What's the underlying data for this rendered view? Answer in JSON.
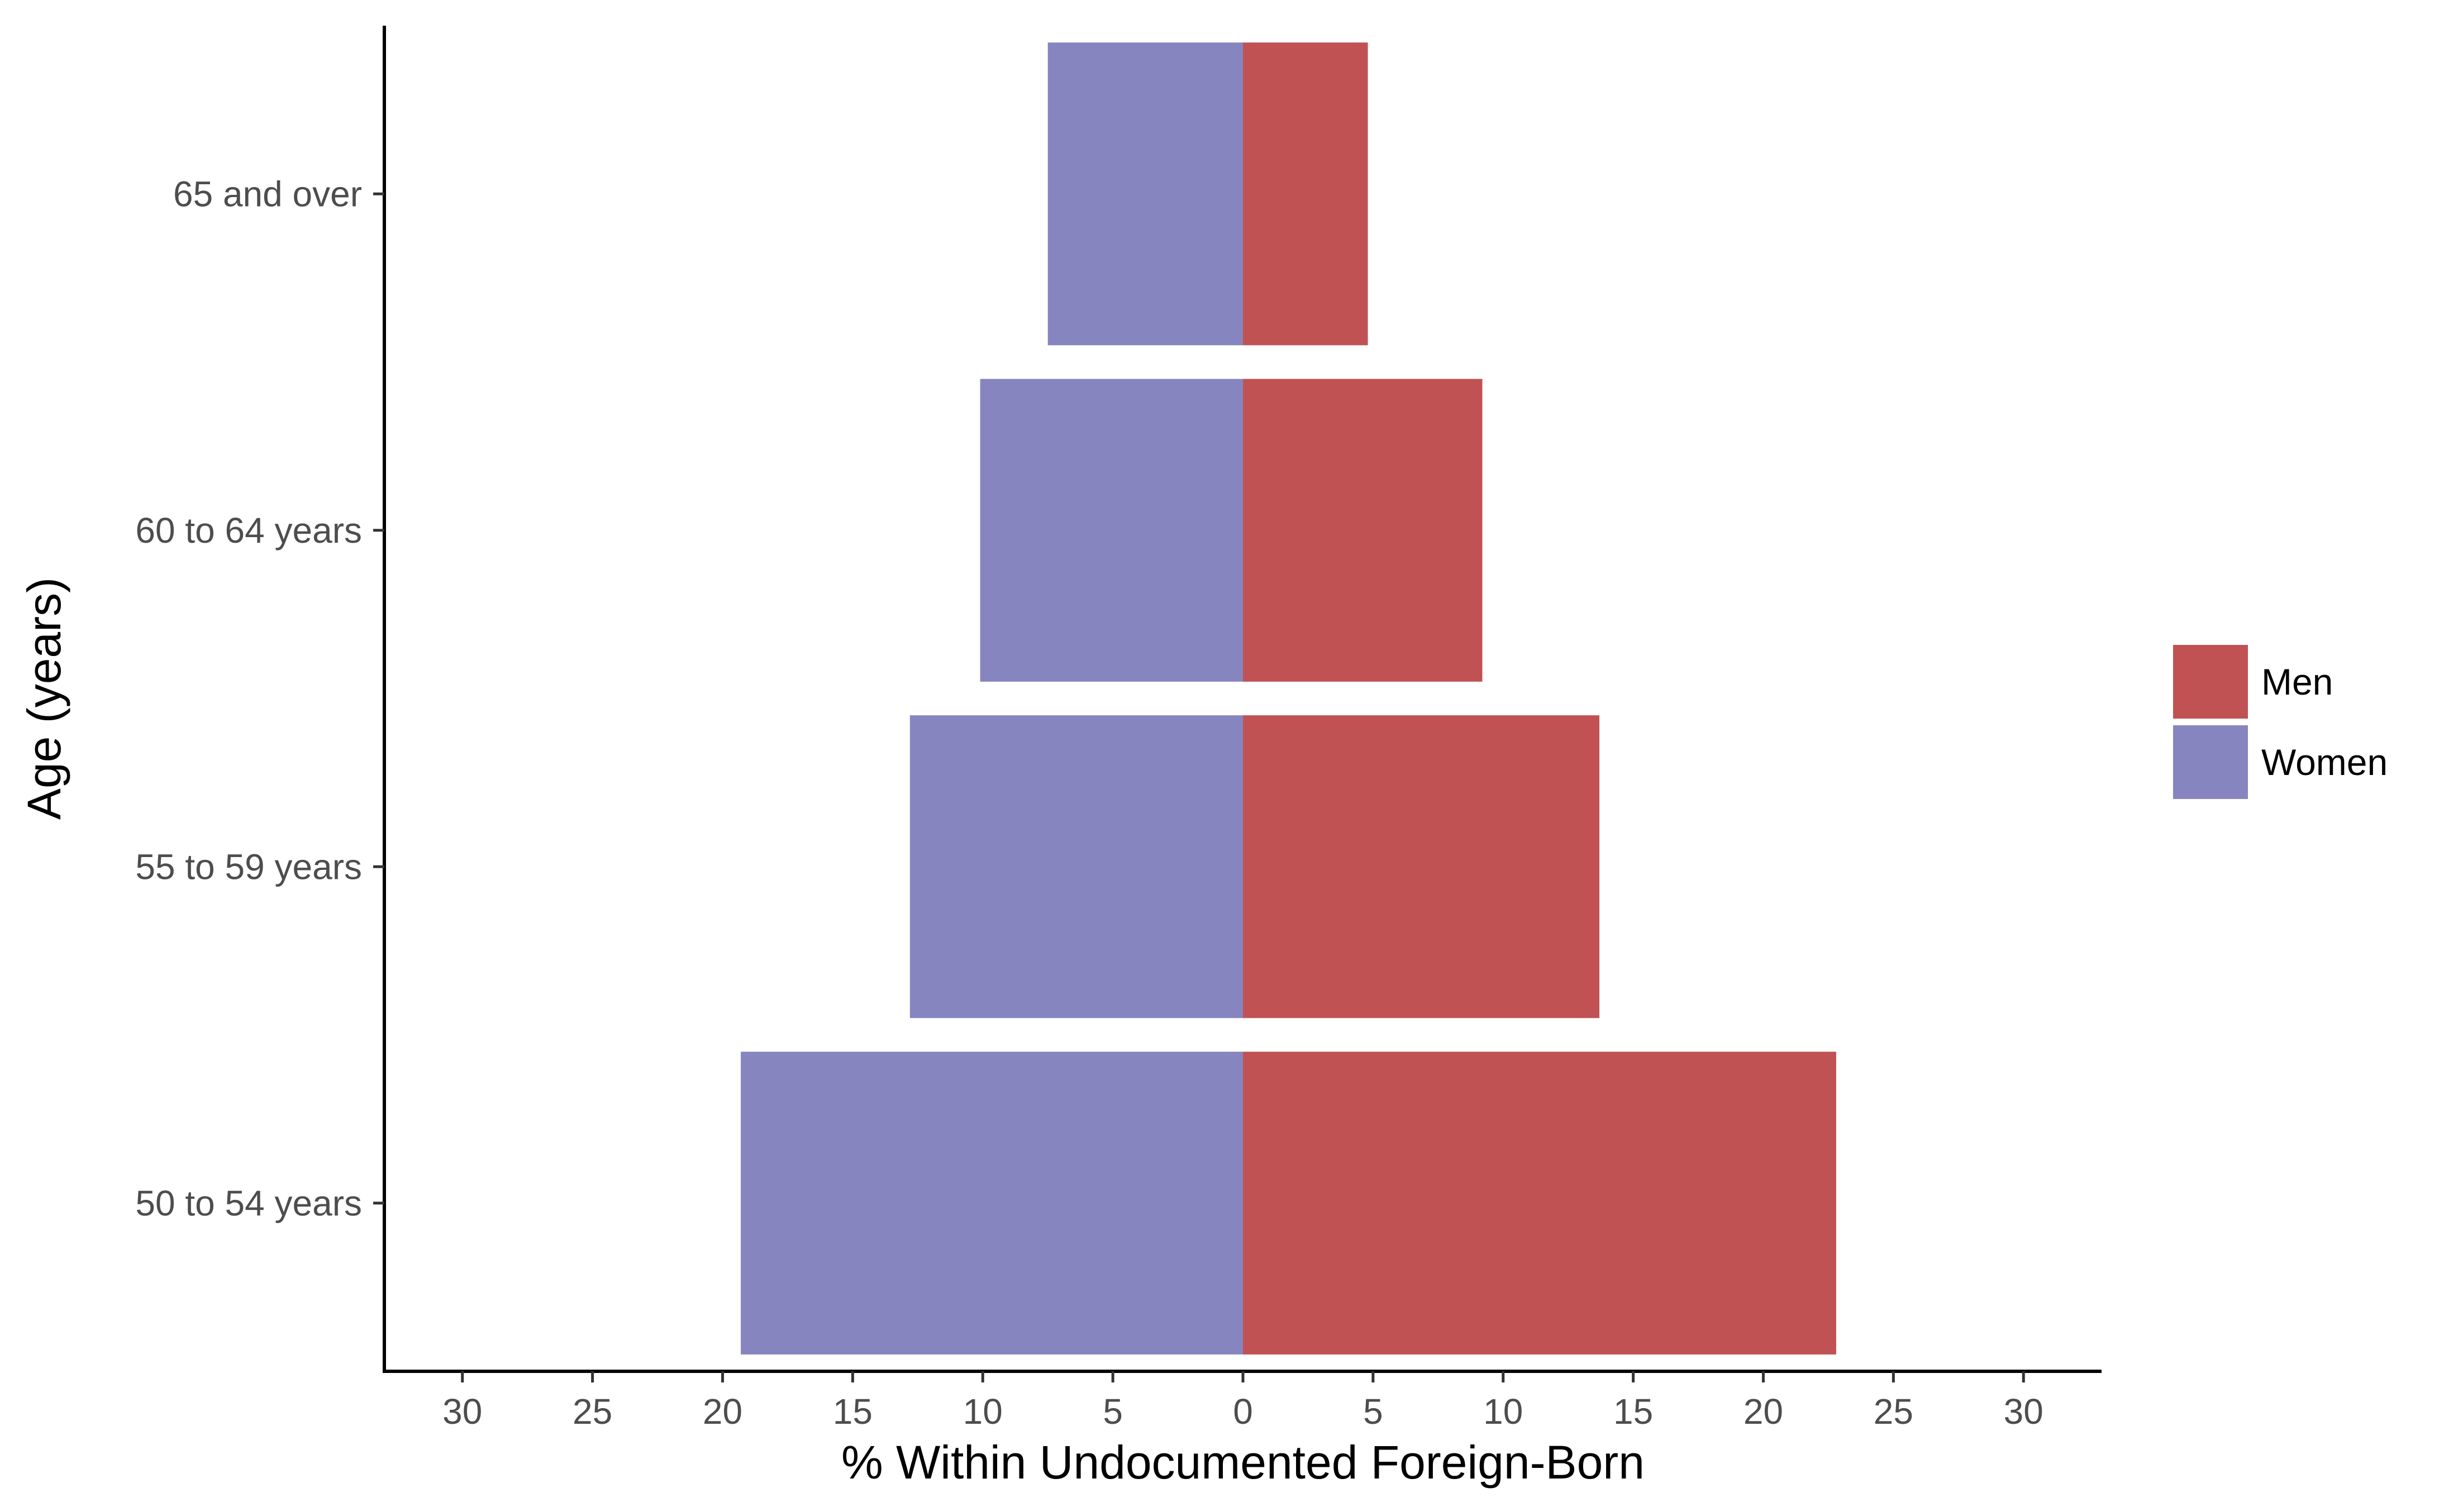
{
  "chart_data": {
    "type": "bar",
    "orientation": "horizontal",
    "layout": "population-pyramid (diverging)",
    "categories": [
      "50 to 54 years",
      "55 to 59 years",
      "60 to 64 years",
      "65 and over"
    ],
    "series": [
      {
        "name": "Men",
        "color": "#c05254",
        "side": "right",
        "values": [
          22.8,
          13.7,
          9.2,
          4.8
        ]
      },
      {
        "name": "Women",
        "color": "#8785c0",
        "side": "left",
        "values": [
          19.3,
          12.8,
          10.1,
          7.5
        ]
      }
    ],
    "xlabel": "% Within Undocumented Foreign-Born",
    "ylabel": "Age (years)",
    "xlim": [
      -33,
      33
    ],
    "xticks": [
      -30,
      -25,
      -20,
      -15,
      -10,
      -5,
      0,
      5,
      10,
      15,
      20,
      25,
      30
    ],
    "xtick_labels": [
      "30",
      "25",
      "20",
      "15",
      "10",
      "5",
      "0",
      "5",
      "10",
      "15",
      "20",
      "25",
      "30"
    ],
    "grid": false,
    "legend": {
      "position": "right",
      "entries": [
        "Men",
        "Women"
      ]
    }
  }
}
